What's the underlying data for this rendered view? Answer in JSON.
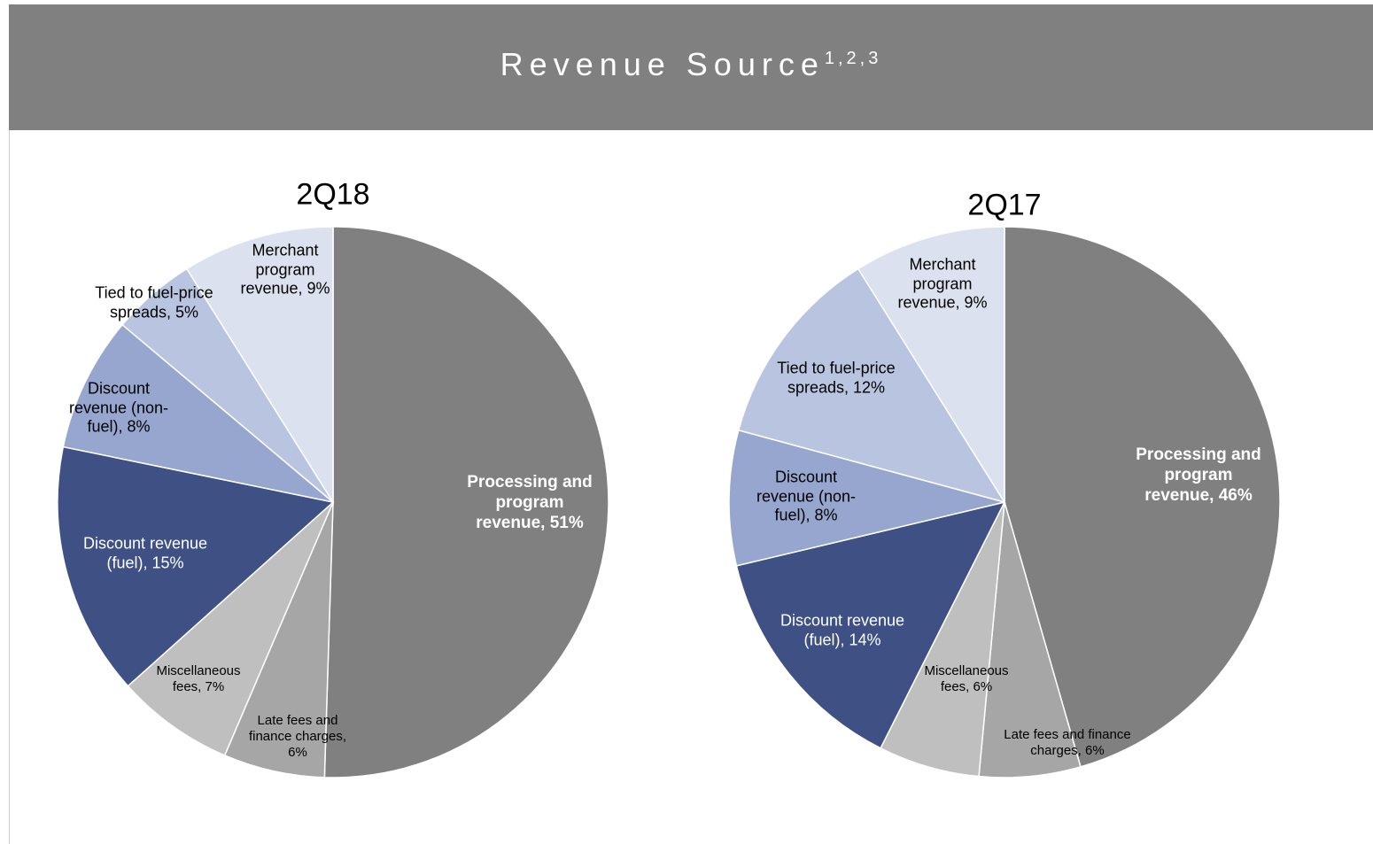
{
  "header": {
    "title": "Revenue Source",
    "superscript": "1,2,3"
  },
  "chart_data": [
    {
      "type": "pie",
      "title": "2Q18",
      "labels": [
        "Processing and program revenue, 51%",
        "Late fees and finance charges, 6%",
        "Miscellaneous fees, 7%",
        "Discount revenue (fuel), 15%",
        "Discount revenue (non-fuel), 8%",
        "Tied to fuel-price spreads, 5%",
        "Merchant program revenue, 9%"
      ],
      "values": [
        51,
        6,
        7,
        15,
        8,
        5,
        9
      ],
      "colors": [
        "#808080",
        "#a6a6a6",
        "#bfbfbf",
        "#3e5084",
        "#97a6cf",
        "#b9c4e0",
        "#dce1ef"
      ]
    },
    {
      "type": "pie",
      "title": "2Q17",
      "labels": [
        "Processing and program revenue, 46%",
        "Late fees and finance charges, 6%",
        "Miscellaneous fees, 6%",
        "Discount revenue (fuel), 14%",
        "Discount revenue (non-fuel), 8%",
        "Tied to fuel-price spreads, 12%",
        "Merchant program revenue, 9%"
      ],
      "values": [
        46,
        6,
        6,
        14,
        8,
        12,
        9
      ],
      "colors": [
        "#808080",
        "#a6a6a6",
        "#bfbfbf",
        "#3e5084",
        "#97a6cf",
        "#b9c4e0",
        "#dce1ef"
      ]
    }
  ]
}
